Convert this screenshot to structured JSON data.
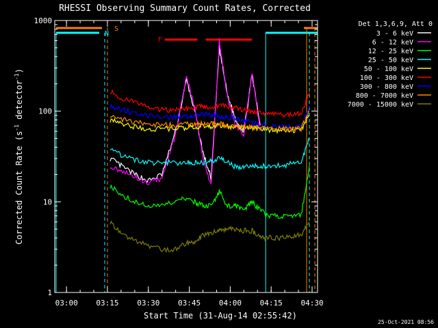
{
  "header": {
    "title": "RHESSI Observing Summary Count Rates, Corrected",
    "xlabel": "Start Time (31-Aug-14 02:55:42)",
    "ylabel_main": "Corrected Count Rate (s",
    "ylabel_sup": "-1",
    "ylabel_mid": " detector",
    "ylabel_sup2": "-1",
    "ylabel_end": ")",
    "timestamp": "25-Oct-2021 08:56"
  },
  "legend": {
    "header": "Det 1,3,6,9, Att 0"
  },
  "markers": {
    "saa_label": "S",
    "night_label": "N",
    "flare_label": "F"
  },
  "colors": {
    "background": "#000000",
    "axes": "#ffffff",
    "saa": "#ff7f00",
    "night": "#00ffff",
    "flare": "#ff0000"
  },
  "chart_data": {
    "type": "line",
    "title": "RHESSI Observing Summary Count Rates, Corrected",
    "xlabel": "Start Time (31-Aug-14 02:55:42)",
    "ylabel": "Corrected Count Rate (s-1 detector-1)",
    "yscale": "log",
    "ylim": [
      1,
      1000
    ],
    "xlim": [
      "02:55:42",
      "04:32:00"
    ],
    "xticks": [
      "03:00",
      "03:15",
      "03:30",
      "03:45",
      "04:00",
      "04:15",
      "04:30"
    ],
    "yticks": [
      "1",
      "10",
      "100",
      "1000"
    ],
    "grid": false,
    "legend_position": "right",
    "x": [
      "03:16",
      "03:20",
      "03:25",
      "03:30",
      "03:35",
      "03:40",
      "03:44",
      "03:47",
      "03:50",
      "03:53",
      "03:56",
      "03:59",
      "04:02",
      "04:05",
      "04:08",
      "04:11",
      "04:14",
      "04:18",
      "04:22",
      "04:26",
      "04:29"
    ],
    "series": [
      {
        "name": "3 - 6 keV",
        "color": "#ffffff",
        "values": [
          30,
          25,
          20,
          17,
          20,
          60,
          220,
          100,
          35,
          18,
          500,
          150,
          80,
          60,
          250,
          70,
          null,
          null,
          null,
          null,
          null
        ]
      },
      {
        "name": "6 - 12 keV",
        "color": "#ff00ff",
        "values": [
          25,
          22,
          19,
          16,
          18,
          55,
          240,
          110,
          30,
          15,
          600,
          140,
          70,
          55,
          270,
          60,
          null,
          null,
          null,
          null,
          null
        ]
      },
      {
        "name": "12 - 25 keV",
        "color": "#00ff00",
        "values": [
          15,
          12,
          10,
          9,
          9,
          10,
          11,
          10,
          9,
          9,
          13,
          9,
          9,
          8,
          10,
          8,
          7,
          7,
          7,
          7,
          25
        ]
      },
      {
        "name": "25 - 50 keV",
        "color": "#00ffff",
        "values": [
          40,
          33,
          29,
          27,
          27,
          27,
          27,
          27,
          27,
          28,
          30,
          27,
          24,
          24,
          25,
          25,
          25,
          25,
          26,
          27,
          50
        ]
      },
      {
        "name": "50 - 100 keV",
        "color": "#ffff00",
        "values": [
          80,
          72,
          67,
          64,
          64,
          65,
          66,
          67,
          68,
          68,
          69,
          68,
          67,
          66,
          65,
          64,
          62,
          61,
          61,
          62,
          90
        ]
      },
      {
        "name": "100 - 300 keV",
        "color": "#ff0000",
        "values": [
          165,
          140,
          125,
          110,
          103,
          103,
          105,
          110,
          113,
          112,
          115,
          112,
          108,
          104,
          100,
          96,
          92,
          91,
          91,
          95,
          160
        ]
      },
      {
        "name": "300 - 800 keV",
        "color": "#0000ff",
        "values": [
          115,
          105,
          95,
          88,
          85,
          86,
          88,
          90,
          92,
          91,
          88,
          85,
          82,
          78,
          74,
          72,
          70,
          68,
          66,
          68,
          115
        ]
      },
      {
        "name": "800 - 7000 keV",
        "color": "#ff8c00",
        "values": [
          90,
          82,
          76,
          72,
          70,
          70,
          71,
          72,
          73,
          73,
          72,
          70,
          68,
          67,
          66,
          66,
          66,
          64,
          63,
          64,
          100
        ]
      },
      {
        "name": "7000 - 15000 keV",
        "color": "#808000",
        "values": [
          6,
          4.5,
          3.8,
          3.2,
          3,
          3,
          3.5,
          3.7,
          4.2,
          4.5,
          5,
          5,
          5,
          4.8,
          4.8,
          4,
          4,
          4,
          4.2,
          4.3,
          6
        ]
      }
    ],
    "saa_interval": [
      "03:15",
      "04:28"
    ],
    "night_interval": [
      "03:14",
      "04:13"
    ],
    "flare_intervals": [
      [
        "03:36",
        "03:48"
      ],
      [
        "03:51",
        "04:08"
      ]
    ]
  }
}
